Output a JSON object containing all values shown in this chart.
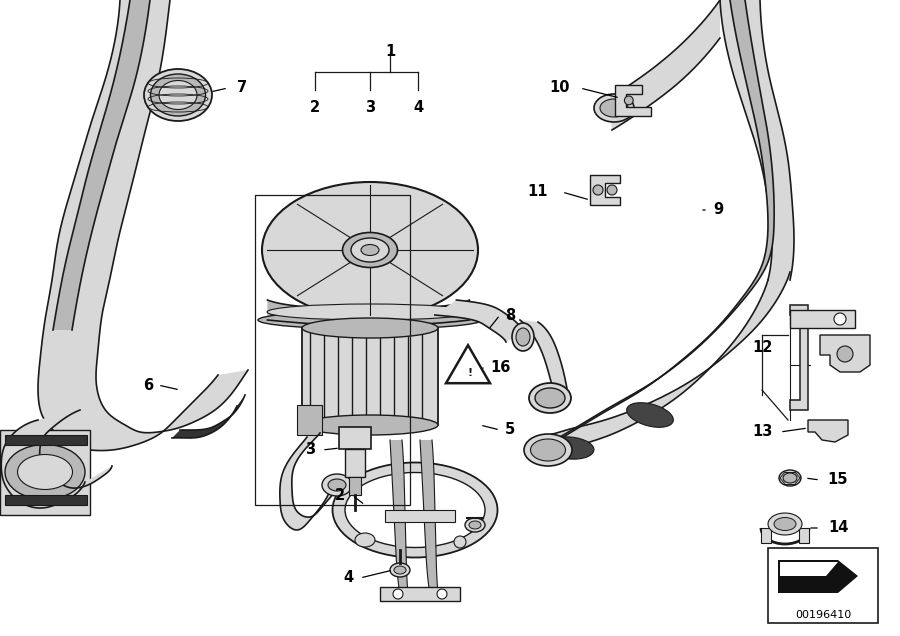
{
  "bg_color": "#ffffff",
  "line_color": "#1a1a1a",
  "fill_light": "#d8d8d8",
  "fill_mid": "#b8b8b8",
  "fill_dark": "#888888",
  "watermark_text": "00196410",
  "figsize": [
    9.0,
    6.36
  ],
  "dpi": 100
}
